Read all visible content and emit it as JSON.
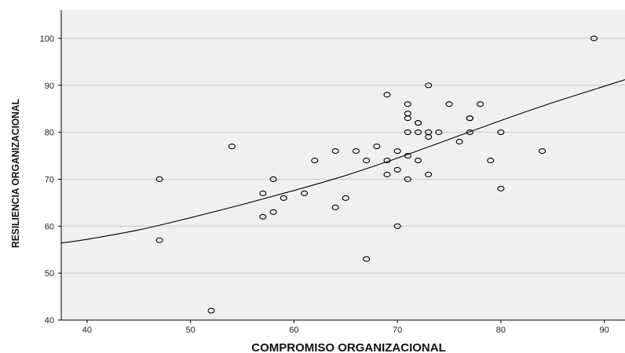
{
  "chart_data": {
    "type": "scatter",
    "title": "",
    "xlabel": "COMPROMISO ORGANIZACIONAL",
    "ylabel": "RESILIENCIA ORGANIZACIONAL",
    "xlim": [
      37.5,
      92
    ],
    "ylim": [
      40,
      106
    ],
    "xticks": [
      "40",
      "50",
      "60",
      "70",
      "80",
      "90"
    ],
    "yticks": [
      "40",
      "50",
      "60",
      "70",
      "80",
      "90",
      "100"
    ],
    "grid": "horizontal",
    "legend": "none",
    "background_color": "#f0f0f0",
    "marker_color": "#000000",
    "points": [
      [
        47,
        70
      ],
      [
        47,
        57
      ],
      [
        52,
        42
      ],
      [
        54,
        77
      ],
      [
        57,
        67
      ],
      [
        57,
        62
      ],
      [
        58,
        70
      ],
      [
        58,
        63
      ],
      [
        59,
        66
      ],
      [
        61,
        67
      ],
      [
        62,
        74
      ],
      [
        64,
        76
      ],
      [
        64,
        64
      ],
      [
        65,
        66
      ],
      [
        66,
        76
      ],
      [
        67,
        74
      ],
      [
        67,
        53
      ],
      [
        68,
        77
      ],
      [
        69,
        88
      ],
      [
        69,
        74
      ],
      [
        69,
        71
      ],
      [
        70,
        76
      ],
      [
        70,
        72
      ],
      [
        70,
        60
      ],
      [
        71,
        86
      ],
      [
        71,
        84
      ],
      [
        71,
        83
      ],
      [
        71,
        80
      ],
      [
        71,
        75
      ],
      [
        71,
        70
      ],
      [
        72,
        82
      ],
      [
        72,
        82
      ],
      [
        72,
        80
      ],
      [
        72,
        74
      ],
      [
        73,
        90
      ],
      [
        73,
        80
      ],
      [
        73,
        79
      ],
      [
        73,
        71
      ],
      [
        74,
        80
      ],
      [
        75,
        86
      ],
      [
        76,
        78
      ],
      [
        77,
        83
      ],
      [
        77,
        83
      ],
      [
        77,
        80
      ],
      [
        78,
        86
      ],
      [
        79,
        74
      ],
      [
        80,
        80
      ],
      [
        80,
        68
      ],
      [
        84,
        76
      ],
      [
        89,
        100
      ]
    ],
    "fit_line": {
      "x": [
        37.5,
        40,
        45,
        50,
        55,
        60,
        65,
        70,
        75,
        80,
        85,
        90,
        92
      ],
      "y": [
        56.4,
        57.2,
        59.2,
        61.8,
        64.6,
        67.6,
        70.8,
        74.5,
        78.5,
        82.5,
        86.3,
        89.8,
        91.2
      ]
    }
  }
}
